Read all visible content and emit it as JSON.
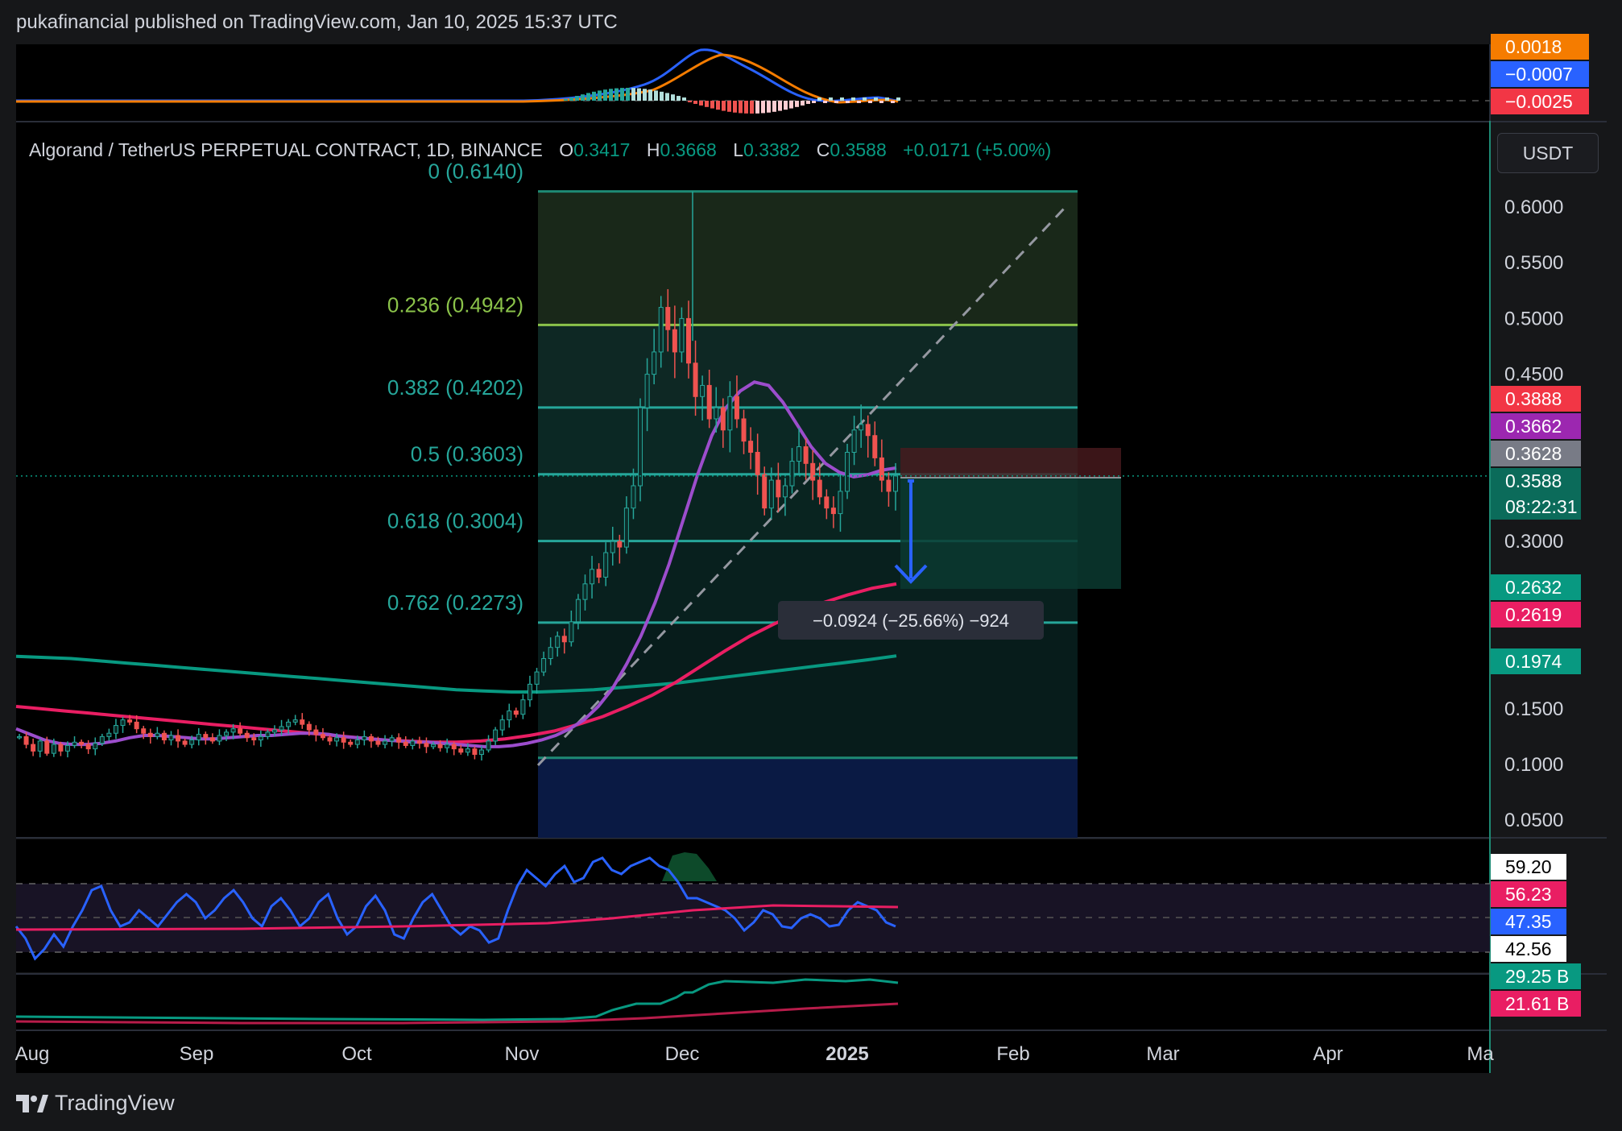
{
  "header": {
    "published": "pukafinancial published on TradingView.com, Jan 10, 2025 15:37 UTC"
  },
  "footer": {
    "brand": "TradingView"
  },
  "currency_button": "USDT",
  "chart_data": {
    "type": "candlestick",
    "symbol_title": "Algorand / TetherUS PERPETUAL CONTRACT, 1D, BINANCE",
    "ohlc": {
      "o_label": "O",
      "o": "0.3417",
      "h_label": "H",
      "h": "0.3668",
      "l_label": "L",
      "l": "0.3382",
      "c_label": "C",
      "c": "0.3588",
      "change": "+0.0171 (+5.00%)"
    },
    "price_axis_ticks": [
      0.6,
      0.55,
      0.5,
      0.45,
      0.3,
      0.15,
      0.1,
      0.05
    ],
    "price_axis_tick_labels": [
      "0.6000",
      "0.5500",
      "0.5000",
      "0.4500",
      "0.3000",
      "0.1500",
      "0.1000",
      "0.0500"
    ],
    "ylim": [
      0.03,
      0.65
    ],
    "time_axis_labels": [
      "Aug",
      "Sep",
      "Oct",
      "Nov",
      "Dec",
      "2025",
      "Feb",
      "Mar",
      "Apr",
      "Ma"
    ],
    "fib_levels": [
      {
        "ratio": "0",
        "price": 0.614,
        "label": "0 (0.6140)"
      },
      {
        "ratio": "0.236",
        "price": 0.4942,
        "label": "0.236 (0.4942)"
      },
      {
        "ratio": "0.382",
        "price": 0.4202,
        "label": "0.382 (0.4202)"
      },
      {
        "ratio": "0.5",
        "price": 0.3603,
        "label": "0.5 (0.3603)"
      },
      {
        "ratio": "0.618",
        "price": 0.3004,
        "label": "0.618 (0.3004)"
      },
      {
        "ratio": "0.762",
        "price": 0.2273,
        "label": "0.762 (0.2273)"
      },
      {
        "ratio": "1",
        "price": 0.106,
        "label": ""
      }
    ],
    "measure_label": "−0.0924 (−25.66%) −924",
    "price_badges": [
      {
        "value": "0.3888",
        "price": 0.3888,
        "color": "#f23645"
      },
      {
        "value": "0.3662",
        "price": 0.3662,
        "color": "#9c27b0"
      },
      {
        "value": "0.3628",
        "price": 0.3628,
        "color": "#787b86"
      },
      {
        "value": "0.3588",
        "price": 0.3588,
        "color": "#0b6b5a",
        "countdown": "08:22:31"
      },
      {
        "value": "0.2632",
        "price": 0.2632,
        "color": "#089981"
      },
      {
        "value": "0.2619",
        "price": 0.2619,
        "color": "#e91e63"
      },
      {
        "value": "0.1974",
        "price": 0.1974,
        "color": "#089981"
      }
    ],
    "macd_badges": [
      {
        "value": "0.0018",
        "color": "#f57c00"
      },
      {
        "value": "−0.0007",
        "color": "#2962ff"
      },
      {
        "value": "−0.0025",
        "color": "#f23645"
      }
    ],
    "rsi_badges": [
      {
        "value": "59.20",
        "color": "#ffffff",
        "text": "#000000"
      },
      {
        "value": "56.23",
        "color": "#e91e63",
        "text": "#ffffff"
      },
      {
        "value": "47.35",
        "color": "#2962ff",
        "text": "#ffffff"
      },
      {
        "value": "42.56",
        "color": "#ffffff",
        "text": "#000000"
      }
    ],
    "obv_badges": [
      {
        "value": "29.25 B",
        "color": "#089981"
      },
      {
        "value": "21.61 B",
        "color": "#e91e63"
      }
    ],
    "series": {
      "close": [
        0.125,
        0.118,
        0.112,
        0.121,
        0.11,
        0.118,
        0.112,
        0.117,
        0.12,
        0.118,
        0.114,
        0.119,
        0.125,
        0.128,
        0.135,
        0.14,
        0.138,
        0.132,
        0.128,
        0.125,
        0.128,
        0.122,
        0.126,
        0.121,
        0.118,
        0.122,
        0.127,
        0.124,
        0.121,
        0.126,
        0.129,
        0.132,
        0.128,
        0.124,
        0.122,
        0.125,
        0.129,
        0.131,
        0.134,
        0.138,
        0.14,
        0.136,
        0.131,
        0.127,
        0.124,
        0.121,
        0.124,
        0.12,
        0.118,
        0.122,
        0.125,
        0.121,
        0.118,
        0.121,
        0.124,
        0.12,
        0.117,
        0.121,
        0.119,
        0.116,
        0.118,
        0.115,
        0.118,
        0.114,
        0.111,
        0.114,
        0.109,
        0.113,
        0.121,
        0.131,
        0.14,
        0.148,
        0.145,
        0.158,
        0.172,
        0.183,
        0.195,
        0.205,
        0.215,
        0.21,
        0.228,
        0.248,
        0.262,
        0.275,
        0.268,
        0.29,
        0.3,
        0.295,
        0.33,
        0.35,
        0.42,
        0.45,
        0.47,
        0.51,
        0.49,
        0.47,
        0.5,
        0.46,
        0.43,
        0.44,
        0.41,
        0.42,
        0.4,
        0.43,
        0.41,
        0.39,
        0.38,
        0.36,
        0.33,
        0.355,
        0.34,
        0.35,
        0.372,
        0.385,
        0.37,
        0.355,
        0.34,
        0.33,
        0.325,
        0.345,
        0.38,
        0.4,
        0.405,
        0.395,
        0.375,
        0.355,
        0.345,
        0.3588
      ],
      "ma_purple": [
        0.132,
        0.127,
        0.122,
        0.119,
        0.118,
        0.118,
        0.119,
        0.121,
        0.124,
        0.126,
        0.126,
        0.125,
        0.124,
        0.123,
        0.123,
        0.124,
        0.125,
        0.126,
        0.126,
        0.127,
        0.128,
        0.128,
        0.127,
        0.125,
        0.124,
        0.123,
        0.122,
        0.121,
        0.12,
        0.12,
        0.119,
        0.118,
        0.117,
        0.116,
        0.116,
        0.117,
        0.119,
        0.122,
        0.126,
        0.132,
        0.14,
        0.152,
        0.168,
        0.19,
        0.215,
        0.245,
        0.28,
        0.32,
        0.36,
        0.395,
        0.42,
        0.435,
        0.443,
        0.44,
        0.425,
        0.405,
        0.385,
        0.37,
        0.362,
        0.358,
        0.36,
        0.364,
        0.366
      ],
      "ma_red": [
        0.152,
        0.15,
        0.148,
        0.146,
        0.144,
        0.142,
        0.14,
        0.138,
        0.136,
        0.134,
        0.132,
        0.13,
        0.128,
        0.126,
        0.124,
        0.122,
        0.121,
        0.12,
        0.12,
        0.121,
        0.123,
        0.126,
        0.13,
        0.136,
        0.143,
        0.152,
        0.162,
        0.174,
        0.188,
        0.202,
        0.215,
        0.226,
        0.236,
        0.245,
        0.252,
        0.258,
        0.2619
      ],
      "ma_teal": [
        0.197,
        0.196,
        0.195,
        0.193,
        0.191,
        0.189,
        0.187,
        0.185,
        0.183,
        0.181,
        0.179,
        0.177,
        0.175,
        0.173,
        0.171,
        0.169,
        0.167,
        0.166,
        0.165,
        0.165,
        0.166,
        0.167,
        0.169,
        0.171,
        0.173,
        0.176,
        0.179,
        0.182,
        0.185,
        0.188,
        0.191,
        0.194,
        0.1974
      ]
    }
  }
}
